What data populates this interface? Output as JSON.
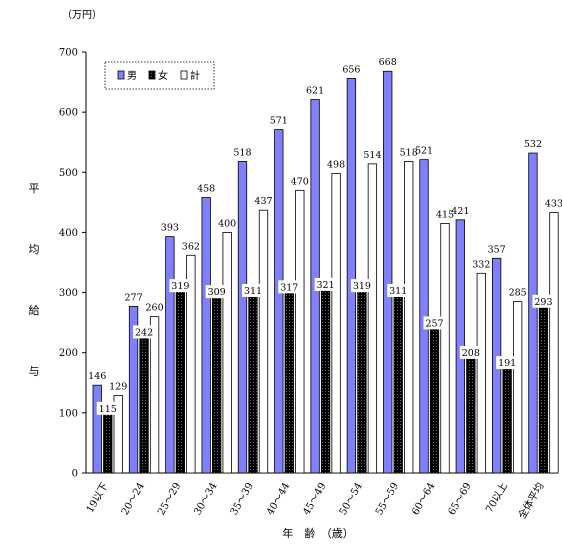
{
  "chart_data": {
    "type": "bar",
    "unit": "（万円）",
    "ylabel": "平均給与",
    "xlabel": "年　齢　（歳）",
    "ylim": [
      0,
      700
    ],
    "yticks": [
      0,
      100,
      200,
      300,
      400,
      500,
      600,
      700
    ],
    "grid": false,
    "legend_position": "top-left",
    "categories": [
      "19以下",
      "20～24",
      "25～29",
      "30～34",
      "35～39",
      "40～44",
      "45～49",
      "50～54",
      "55～59",
      "60～64",
      "65～69",
      "70以上",
      "全体平均"
    ],
    "series": [
      {
        "name": "男",
        "color": "#8080ff",
        "values": [
          146,
          277,
          393,
          458,
          518,
          571,
          621,
          656,
          668,
          521,
          421,
          357,
          532
        ]
      },
      {
        "name": "女",
        "color": "#000000",
        "values": [
          115,
          242,
          319,
          309,
          311,
          317,
          321,
          319,
          311,
          257,
          208,
          191,
          293
        ]
      },
      {
        "name": "計",
        "color": "#ffffff",
        "values": [
          129,
          260,
          362,
          400,
          437,
          470,
          498,
          514,
          518,
          415,
          332,
          285,
          433
        ]
      }
    ]
  }
}
